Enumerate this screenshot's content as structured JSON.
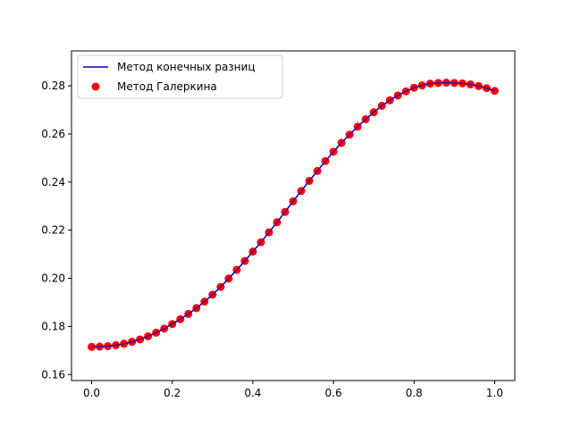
{
  "chart_data": {
    "type": "line",
    "title": "",
    "xlabel": "",
    "ylabel": "",
    "xlim": [
      -0.05,
      1.05
    ],
    "ylim": [
      0.1575,
      0.2945
    ],
    "xticks": [
      0.0,
      0.2,
      0.4,
      0.6,
      0.8,
      1.0
    ],
    "xtick_labels": [
      "0.0",
      "0.2",
      "0.4",
      "0.6",
      "0.8",
      "1.0"
    ],
    "yticks": [
      0.16,
      0.18,
      0.2,
      0.22,
      0.24,
      0.26,
      0.28
    ],
    "ytick_labels": [
      "0.16",
      "0.18",
      "0.20",
      "0.22",
      "0.24",
      "0.26",
      "0.28"
    ],
    "grid": false,
    "legend_position": "upper-left",
    "x": [
      0.0,
      0.02,
      0.04,
      0.06,
      0.08,
      0.1,
      0.12,
      0.14,
      0.16,
      0.18,
      0.2,
      0.22,
      0.24,
      0.26,
      0.28,
      0.3,
      0.32,
      0.34,
      0.36,
      0.38,
      0.4,
      0.42,
      0.44,
      0.46,
      0.48,
      0.5,
      0.52,
      0.54,
      0.56,
      0.58,
      0.6,
      0.62,
      0.64,
      0.66,
      0.68,
      0.7,
      0.72,
      0.74,
      0.76,
      0.78,
      0.8,
      0.82,
      0.84,
      0.86,
      0.88,
      0.9,
      0.92,
      0.94,
      0.96,
      0.98,
      1.0
    ],
    "series": [
      {
        "name": "Метод конечных разниц",
        "kind": "line",
        "color": "#0000cc",
        "values": [
          0.1715,
          0.1716,
          0.1718,
          0.1722,
          0.1728,
          0.1736,
          0.1746,
          0.1759,
          0.1774,
          0.1791,
          0.181,
          0.183,
          0.1852,
          0.1876,
          0.1903,
          0.1932,
          0.1964,
          0.1999,
          0.2035,
          0.2072,
          0.2111,
          0.215,
          0.2191,
          0.2233,
          0.2276,
          0.232,
          0.2363,
          0.2405,
          0.2446,
          0.2487,
          0.2526,
          0.2563,
          0.2597,
          0.263,
          0.2661,
          0.269,
          0.2717,
          0.274,
          0.276,
          0.2777,
          0.2792,
          0.2802,
          0.2809,
          0.2812,
          0.2813,
          0.2812,
          0.281,
          0.2806,
          0.2799,
          0.279,
          0.2779
        ]
      },
      {
        "name": "Метод Галеркина",
        "kind": "scatter",
        "color": "#ff0000",
        "values": [
          0.1715,
          0.1716,
          0.1718,
          0.1722,
          0.1728,
          0.1736,
          0.1746,
          0.1759,
          0.1774,
          0.1791,
          0.181,
          0.183,
          0.1852,
          0.1876,
          0.1903,
          0.1932,
          0.1964,
          0.1999,
          0.2035,
          0.2072,
          0.2111,
          0.215,
          0.2191,
          0.2233,
          0.2276,
          0.232,
          0.2363,
          0.2405,
          0.2446,
          0.2487,
          0.2526,
          0.2563,
          0.2597,
          0.263,
          0.2661,
          0.269,
          0.2717,
          0.274,
          0.276,
          0.2777,
          0.2792,
          0.2802,
          0.2809,
          0.2812,
          0.2813,
          0.2812,
          0.281,
          0.2806,
          0.2799,
          0.279,
          0.2779
        ]
      }
    ]
  }
}
